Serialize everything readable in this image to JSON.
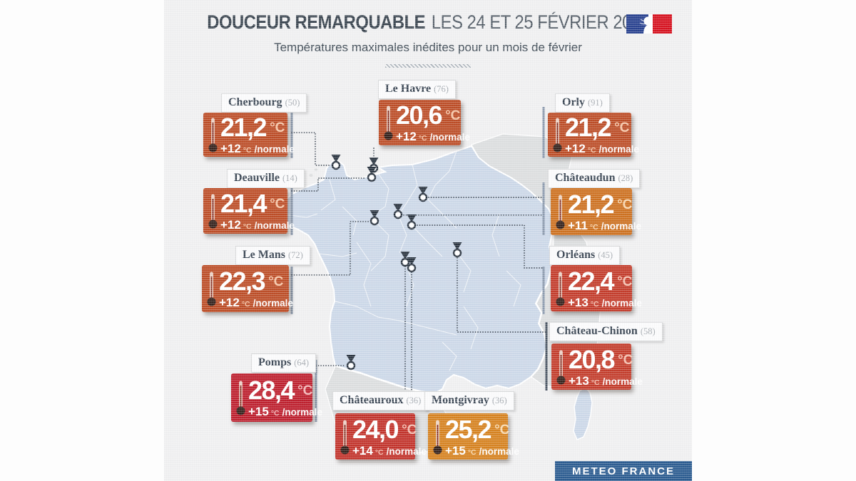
{
  "header": {
    "title_strong": "DOUCEUR REMARQUABLE",
    "title_date": "LES 24 ET 25 FÉVRIER 2026",
    "subtitle": "Températures maximales inédites pour un mois de février",
    "logo_name": "republique-francaise-marianne-logo"
  },
  "labels": {
    "unit": "°C",
    "normale": "/normale"
  },
  "footer": {
    "brand": "METEO FRANCE"
  },
  "colors": {
    "background": "#f0f0f1",
    "map_land": "#ccd8e8",
    "map_neighbor": "#dcdedf",
    "map_border": "#ffffff",
    "connector": "#39434f",
    "stem": "#8b99ad",
    "stem_dark": "#4a5563",
    "badge_bg": "#2c5c90",
    "title_text": "#343f4a",
    "label_text": "#333f4d",
    "label_number": "#a6abb1"
  },
  "stations": [
    {
      "city": "Cherbourg",
      "dept": "(50)",
      "temp": "21,2",
      "anomaly": "+12",
      "bg": "#bc4d27",
      "tint": "#f6c5a6"
    },
    {
      "city": "Le Havre",
      "dept": "(76)",
      "temp": "20,6",
      "anomaly": "+12",
      "bg": "#bc4d27",
      "tint": "#f6c5a6"
    },
    {
      "city": "Orly",
      "dept": "(91)",
      "temp": "21,2",
      "anomaly": "+12",
      "bg": "#bc4d27",
      "tint": "#f6c5a6"
    },
    {
      "city": "Deauville",
      "dept": "(14)",
      "temp": "21,4",
      "anomaly": "+12",
      "bg": "#bc4d27",
      "tint": "#f6c5a6"
    },
    {
      "city": "Châteaudun",
      "dept": "(28)",
      "temp": "21,2",
      "anomaly": "+11",
      "bg": "#cd7120",
      "tint": "#f8d6ae"
    },
    {
      "city": "Le Mans",
      "dept": "(72)",
      "temp": "22,3",
      "anomaly": "+12",
      "bg": "#bc4d27",
      "tint": "#f6c5a6"
    },
    {
      "city": "Orléans",
      "dept": "(45)",
      "temp": "22,4",
      "anomaly": "+13",
      "bg": "#c33c2b",
      "tint": "#f5c0af"
    },
    {
      "city": "Château-Chinon",
      "dept": "(58)",
      "temp": "20,8",
      "anomaly": "+13",
      "bg": "#c33c2b",
      "tint": "#f5c0af"
    },
    {
      "city": "Pomps",
      "dept": "(64)",
      "temp": "28,4",
      "anomaly": "+15",
      "bg": "#bd1f2d",
      "tint": "#f3b5b6"
    },
    {
      "city": "Châteauroux",
      "dept": "(36)",
      "temp": "24,0",
      "anomaly": "+14",
      "bg": "#c2332b",
      "tint": "#f4bcae"
    },
    {
      "city": "Montgivray",
      "dept": "(36)",
      "temp": "25,2",
      "anomaly": "+15",
      "bg": "#d6821f",
      "tint": "#f8d9ae"
    }
  ]
}
